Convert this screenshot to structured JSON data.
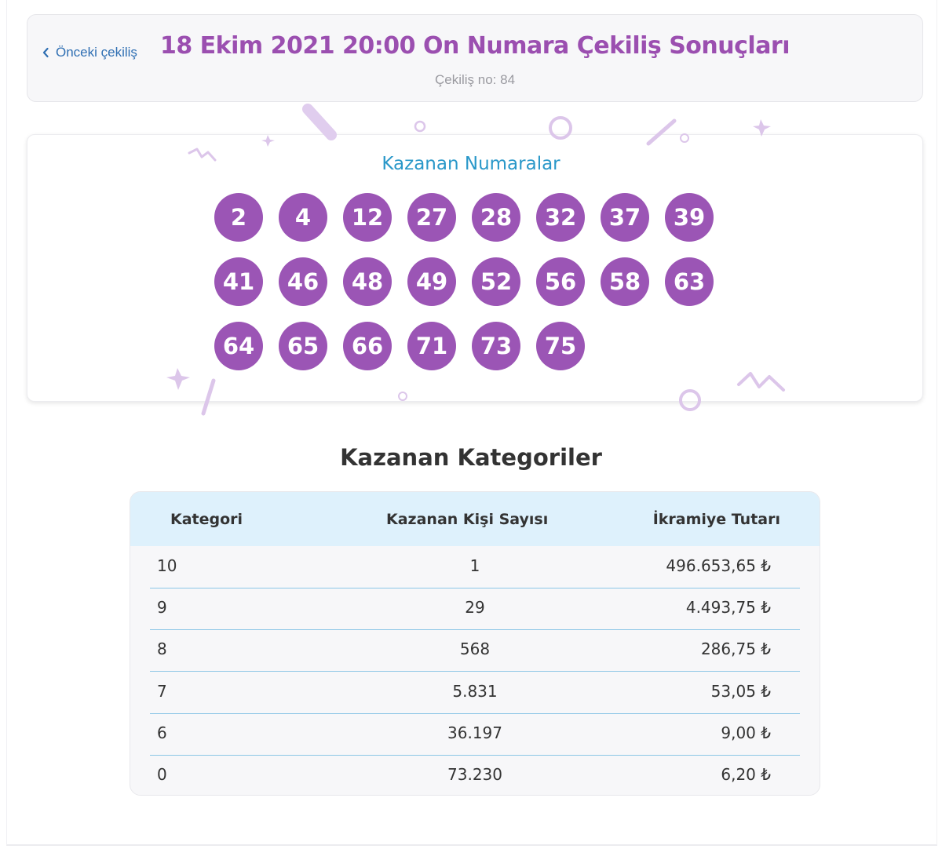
{
  "header": {
    "back_label": "Önceki çekiliş",
    "title": "18 Ekim 2021 20:00 On Numara Çekiliş Sonuçları",
    "subtitle": "Çekiliş no: 84"
  },
  "winning_numbers": {
    "heading": "Kazanan Numaralar",
    "numbers": [
      "2",
      "4",
      "12",
      "27",
      "28",
      "32",
      "37",
      "39",
      "41",
      "46",
      "48",
      "49",
      "52",
      "56",
      "58",
      "63",
      "64",
      "65",
      "66",
      "71",
      "73",
      "75"
    ],
    "ball_color": "#9b55b5"
  },
  "categories": {
    "heading": "Kazanan Kategoriler",
    "columns": [
      "Kategori",
      "Kazanan Kişi Sayısı",
      "İkramiye Tutarı"
    ],
    "rows": [
      {
        "category": "10",
        "winners": "1",
        "prize": "496.653,65 ₺"
      },
      {
        "category": "9",
        "winners": "29",
        "prize": "4.493,75 ₺"
      },
      {
        "category": "8",
        "winners": "568",
        "prize": "286,75 ₺"
      },
      {
        "category": "7",
        "winners": "5.831",
        "prize": "53,05 ₺"
      },
      {
        "category": "6",
        "winners": "36.197",
        "prize": "9,00 ₺"
      },
      {
        "category": "0",
        "winners": "73.230",
        "prize": "6,20 ₺"
      }
    ]
  },
  "colors": {
    "title": "#9b4fb0",
    "link": "#2f6fb3",
    "numbers_heading": "#2a98c9",
    "table_header_bg": "#def1fc",
    "row_divider": "#8cc6e6"
  }
}
